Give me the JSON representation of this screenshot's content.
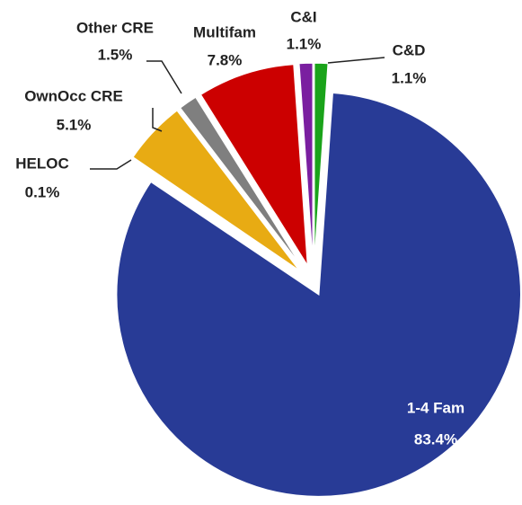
{
  "chart_data": {
    "type": "pie",
    "categories": [
      "C&D",
      "1-4 Fam",
      "HELOC",
      "OwnOcc CRE",
      "Other CRE",
      "Multifam",
      "C&I"
    ],
    "values": [
      1.1,
      83.4,
      0.1,
      5.1,
      1.5,
      7.8,
      1.1
    ],
    "value_labels": [
      "1.1%",
      "83.4%",
      "0.1%",
      "5.1%",
      "1.5%",
      "7.8%",
      "1.1%"
    ],
    "colors": [
      "#1aa31a",
      "#283b96",
      "#c9c3e0",
      "#e8ab13",
      "#7f7f7f",
      "#cc0000",
      "#7a1fa0"
    ]
  }
}
